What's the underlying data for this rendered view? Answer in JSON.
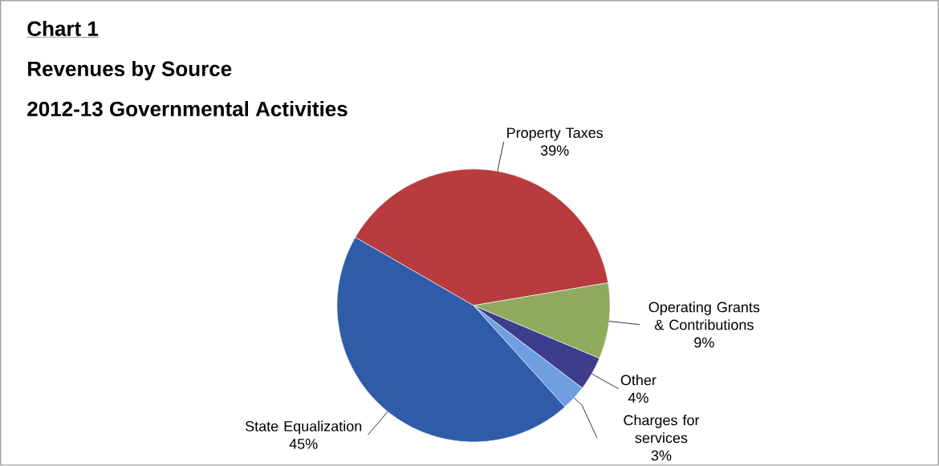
{
  "chart_data": {
    "type": "pie",
    "title": "Revenues by Source",
    "subtitle": "2012-13 Governmental Activities",
    "annotations": [
      "Chart 1"
    ],
    "categories": [
      "Property Taxes",
      "Operating Grants & Contributions",
      "Other",
      "Charges for services",
      "State Equalization"
    ],
    "values": [
      39,
      9,
      4,
      3,
      45
    ],
    "value_labels": [
      "39%",
      "9%",
      "4%",
      "3%",
      "45%"
    ],
    "colors": [
      "#b83b3d",
      "#8eab5e",
      "#3e3c8c",
      "#6f9fe0",
      "#2f5ba8"
    ]
  }
}
